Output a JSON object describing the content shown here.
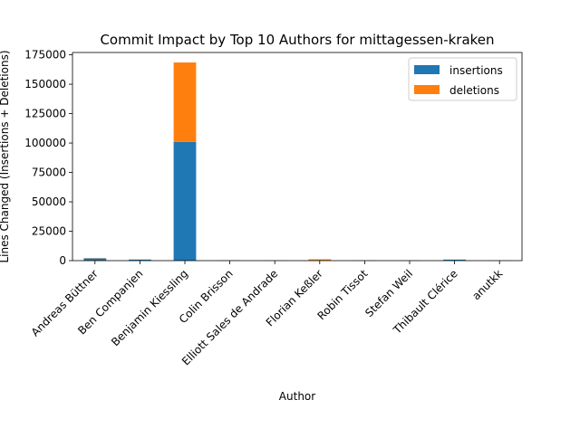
{
  "chart_data": {
    "type": "bar",
    "stacked": true,
    "title": "Commit Impact by Top 10 Authors for mittagessen-kraken",
    "xlabel": "Author",
    "ylabel": "Lines Changed (Insertions + Deletions)",
    "categories": [
      "Andreas Büttner",
      "Ben Companjen",
      "Benjamin Kiessling",
      "Colin Brisson",
      "Elliott Sales de Andrade",
      "Florian Keßler",
      "Robin Tissot",
      "Stefan Weil",
      "Thibault Clérice",
      "anutkk"
    ],
    "series": [
      {
        "name": "insertions",
        "color": "#1f77b4",
        "values": [
          1900,
          900,
          101000,
          200,
          100,
          250,
          150,
          100,
          800,
          100
        ]
      },
      {
        "name": "deletions",
        "color": "#ff7f0e",
        "values": [
          200,
          100,
          67500,
          100,
          50,
          900,
          50,
          50,
          150,
          50
        ]
      }
    ],
    "ylim": [
      0,
      177000
    ],
    "yticks": [
      0,
      25000,
      50000,
      75000,
      100000,
      125000,
      150000,
      175000
    ],
    "legend": "top-right",
    "grid": false
  }
}
